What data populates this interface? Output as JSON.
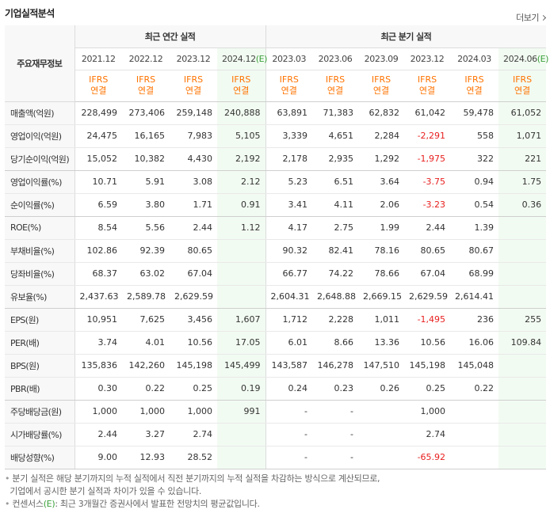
{
  "header": {
    "title": "기업실적분석",
    "more_label": "더보기"
  },
  "table": {
    "corner_label": "주요재무정보",
    "group_annual": "최근 연간 실적",
    "group_quarter": "최근 분기 실적",
    "periods": [
      "2021.12",
      "2022.12",
      "2023.12",
      "2024.12",
      "2023.03",
      "2023.06",
      "2023.09",
      "2023.12",
      "2024.03",
      "2024.06"
    ],
    "estimate_mark": "(E)",
    "ifrs_top": "IFRS",
    "ifrs_bottom": "연결",
    "rows": [
      {
        "label": "매출액(억원)",
        "values": [
          "228,499",
          "273,406",
          "259,148",
          "240,888",
          "63,891",
          "71,383",
          "62,832",
          "61,042",
          "59,478",
          "61,052"
        ]
      },
      {
        "label": "영업이익(억원)",
        "values": [
          "24,475",
          "16,165",
          "7,983",
          "5,105",
          "3,339",
          "4,651",
          "2,284",
          "-2,291",
          "558",
          "1,071"
        ]
      },
      {
        "label": "당기순이익(억원)",
        "values": [
          "15,052",
          "10,382",
          "4,430",
          "2,192",
          "2,178",
          "2,935",
          "1,292",
          "-1,975",
          "322",
          "221"
        ]
      },
      {
        "label": "영업이익률(%)",
        "values": [
          "10.71",
          "5.91",
          "3.08",
          "2.12",
          "5.23",
          "6.51",
          "3.64",
          "-3.75",
          "0.94",
          "1.75"
        ]
      },
      {
        "label": "순이익률(%)",
        "values": [
          "6.59",
          "3.80",
          "1.71",
          "0.91",
          "3.41",
          "4.11",
          "2.06",
          "-3.23",
          "0.54",
          "0.36"
        ]
      },
      {
        "label": "ROE(%)",
        "values": [
          "8.54",
          "5.56",
          "2.44",
          "1.12",
          "4.17",
          "2.75",
          "1.99",
          "2.44",
          "1.39",
          ""
        ]
      },
      {
        "label": "부채비율(%)",
        "values": [
          "102.86",
          "92.39",
          "80.65",
          "",
          "90.32",
          "82.41",
          "78.16",
          "80.65",
          "80.67",
          ""
        ]
      },
      {
        "label": "당좌비율(%)",
        "values": [
          "68.37",
          "63.02",
          "67.04",
          "",
          "66.77",
          "74.22",
          "78.66",
          "67.04",
          "68.99",
          ""
        ]
      },
      {
        "label": "유보율(%)",
        "values": [
          "2,437.63",
          "2,589.78",
          "2,629.59",
          "",
          "2,604.31",
          "2,648.88",
          "2,669.15",
          "2,629.59",
          "2,614.41",
          ""
        ]
      },
      {
        "label": "EPS(원)",
        "values": [
          "10,951",
          "7,625",
          "3,456",
          "1,607",
          "1,712",
          "2,228",
          "1,011",
          "-1,495",
          "236",
          "255"
        ]
      },
      {
        "label": "PER(배)",
        "values": [
          "3.74",
          "4.01",
          "10.56",
          "17.05",
          "6.01",
          "8.66",
          "13.36",
          "10.56",
          "16.06",
          "109.84"
        ]
      },
      {
        "label": "BPS(원)",
        "values": [
          "135,836",
          "142,260",
          "145,198",
          "145,499",
          "143,587",
          "146,278",
          "147,510",
          "145,198",
          "145,048",
          ""
        ]
      },
      {
        "label": "PBR(배)",
        "values": [
          "0.30",
          "0.22",
          "0.25",
          "0.19",
          "0.24",
          "0.23",
          "0.26",
          "0.25",
          "0.22",
          ""
        ]
      },
      {
        "label": "주당배당금(원)",
        "values": [
          "1,000",
          "1,000",
          "1,000",
          "991",
          "-",
          "-",
          "",
          "1,000",
          "",
          ""
        ]
      },
      {
        "label": "시가배당률(%)",
        "values": [
          "2.44",
          "3.27",
          "2.74",
          "",
          "-",
          "-",
          "",
          "2.74",
          "",
          ""
        ]
      },
      {
        "label": "배당성향(%)",
        "values": [
          "9.00",
          "12.93",
          "28.52",
          "",
          "-",
          "-",
          "",
          "-65.92",
          "",
          ""
        ]
      }
    ]
  },
  "notes": {
    "line1": "분기 실적은 해당 분기까지의 누적 실적에서 직전 분기까지의 누적 실적을 차감하는 방식으로 계산되므로,",
    "line2": "기업에서 공시한 분기 실적과 차이가 있을 수 있습니다.",
    "line3_prefix": "컨센서스",
    "line3_mark": "(E)",
    "line3_rest": ": 최근 3개월간 증권사에서 발표한 전망치의 평균값입니다."
  }
}
